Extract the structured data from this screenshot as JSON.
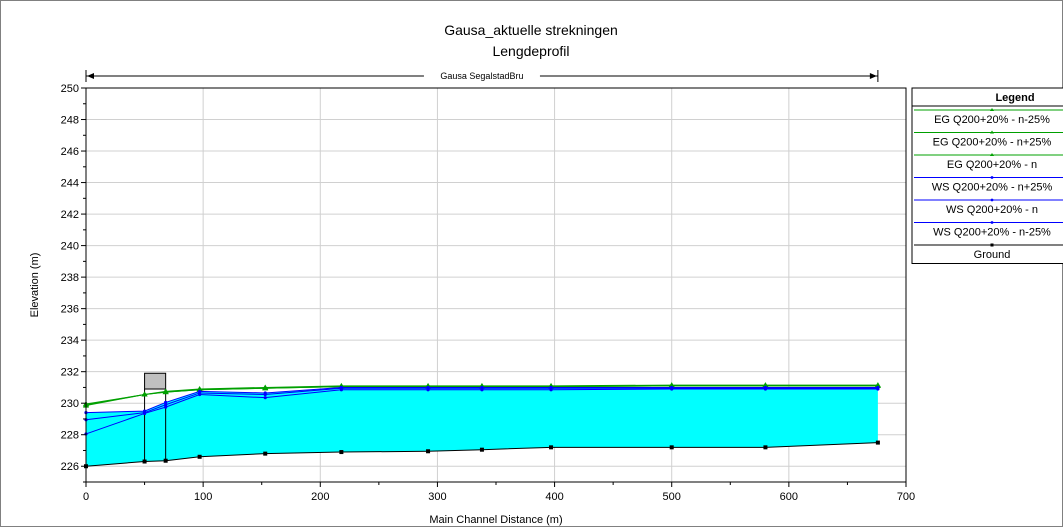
{
  "chart_data": {
    "type": "line",
    "title": "Gausa_aktuelle strekningen",
    "subtitle": "Lengdeprofil",
    "xlabel": "Main Channel Distance (m)",
    "ylabel": "Elevation (m)",
    "xlim": [
      0,
      700
    ],
    "ylim": [
      225,
      250
    ],
    "x_ticks": [
      0,
      100,
      200,
      300,
      400,
      500,
      600,
      700
    ],
    "y_ticks": [
      226,
      228,
      230,
      232,
      234,
      236,
      238,
      240,
      242,
      244,
      246,
      248,
      250
    ],
    "grid": true,
    "reach_label": "Gausa SegalstadBru",
    "reach_range": [
      0,
      676
    ],
    "legend_title": "Legend",
    "legend_position": "right",
    "bridge": {
      "x_start": 50,
      "x_end": 68,
      "low_chord": 230.9,
      "high_chord": 231.9,
      "color": "#c0c0c0"
    },
    "fill_color": "#00ffff",
    "series": [
      {
        "name": "EG  Q200+20% - n-25%",
        "color": "#00a000",
        "x": [
          0,
          50,
          68,
          97,
          153,
          218,
          292,
          338,
          397,
          500,
          580,
          676
        ],
        "y": [
          229.95,
          230.55,
          230.75,
          230.9,
          231.0,
          231.1,
          231.1,
          231.1,
          231.1,
          231.15,
          231.15,
          231.15
        ]
      },
      {
        "name": "EG  Q200+20% - n+25%",
        "color": "#00a000",
        "x": [
          0,
          50,
          68,
          97,
          153,
          218,
          292,
          338,
          397,
          500,
          580,
          676
        ],
        "y": [
          229.85,
          230.55,
          230.7,
          230.85,
          230.95,
          231.05,
          231.05,
          231.05,
          231.05,
          231.1,
          231.1,
          231.1
        ]
      },
      {
        "name": "EG  Q200+20% - n",
        "color": "#00a000",
        "x": [
          0,
          50,
          68,
          97,
          153,
          218,
          292,
          338,
          397,
          500,
          580,
          676
        ],
        "y": [
          229.9,
          230.55,
          230.7,
          230.85,
          230.95,
          231.05,
          231.05,
          231.05,
          231.05,
          231.1,
          231.1,
          231.1
        ]
      },
      {
        "name": "WS  Q200+20% - n+25%",
        "color": "#0000ff",
        "x": [
          0,
          50,
          68,
          97,
          153,
          218,
          292,
          338,
          397,
          500,
          580,
          676
        ],
        "y": [
          229.4,
          229.5,
          230.05,
          230.75,
          230.65,
          231.0,
          231.0,
          231.0,
          231.0,
          231.0,
          231.0,
          231.0
        ]
      },
      {
        "name": "WS  Q200+20% - n",
        "color": "#0000ff",
        "x": [
          0,
          50,
          68,
          97,
          153,
          218,
          292,
          338,
          397,
          500,
          580,
          676
        ],
        "y": [
          228.95,
          229.4,
          229.9,
          230.65,
          230.55,
          230.95,
          230.95,
          230.95,
          230.95,
          230.95,
          230.95,
          230.95
        ]
      },
      {
        "name": "WS  Q200+20% - n-25%",
        "color": "#0000ff",
        "x": [
          0,
          50,
          68,
          97,
          153,
          218,
          292,
          338,
          397,
          500,
          580,
          676
        ],
        "y": [
          228.05,
          229.35,
          229.75,
          230.55,
          230.35,
          230.85,
          230.85,
          230.85,
          230.85,
          230.9,
          230.9,
          230.9
        ]
      },
      {
        "name": "Ground",
        "color": "#000000",
        "x": [
          0,
          50,
          68,
          97,
          153,
          218,
          292,
          338,
          397,
          500,
          580,
          676
        ],
        "y": [
          226.0,
          226.3,
          226.35,
          226.6,
          226.8,
          226.9,
          226.95,
          227.05,
          227.2,
          227.2,
          227.2,
          227.5
        ]
      }
    ]
  }
}
